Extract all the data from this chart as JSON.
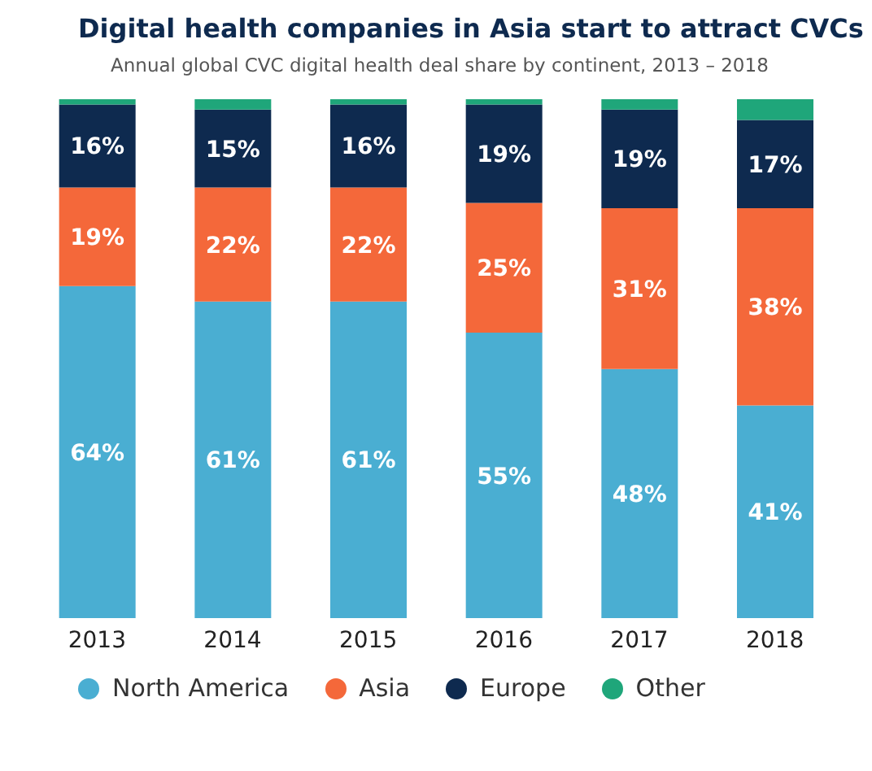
{
  "chart_data": {
    "type": "bar",
    "title": "Digital health companies in Asia start to attract CVCs",
    "subtitle": "Annual global CVC digital health deal share by continent, 2013 – 2018",
    "categories": [
      "2013",
      "2014",
      "2015",
      "2016",
      "2017",
      "2018"
    ],
    "stacked": true,
    "legend": "bottom",
    "tick_labels": "x",
    "series": [
      {
        "name": "North America",
        "color": "#4aaed2",
        "values": [
          64,
          61,
          61,
          55,
          48,
          41
        ],
        "value_labels": [
          "64%",
          "61%",
          "61%",
          "55%",
          "48%",
          "41%"
        ]
      },
      {
        "name": "Asia",
        "color": "#f4683a",
        "values": [
          19,
          22,
          22,
          25,
          31,
          38
        ],
        "value_labels": [
          "19%",
          "22%",
          "22%",
          "25%",
          "31%",
          "38%"
        ]
      },
      {
        "name": "Europe",
        "color": "#0e2a4f",
        "values": [
          16,
          15,
          16,
          19,
          19,
          17
        ],
        "value_labels": [
          "16%",
          "15%",
          "16%",
          "19%",
          "19%",
          "17%"
        ]
      },
      {
        "name": "Other",
        "color": "#1fa67a",
        "values": [
          1,
          2,
          1,
          1,
          2,
          4
        ],
        "value_labels": [
          null,
          null,
          null,
          null,
          null,
          null
        ]
      }
    ]
  }
}
